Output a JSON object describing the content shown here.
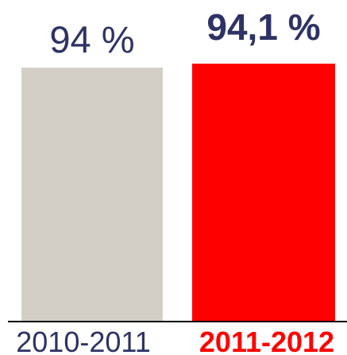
{
  "chart_data": {
    "type": "bar",
    "categories": [
      "2010-2011",
      "2011-2012"
    ],
    "values": [
      94,
      94.1
    ],
    "value_labels": [
      "94 %",
      "94,1 %"
    ],
    "colors": [
      "#d3cfc7",
      "#ff0000"
    ],
    "label_colors": [
      "#2e3264",
      "#2e3264"
    ],
    "category_label_colors": [
      "#2e3264",
      "#ff0000"
    ],
    "highlight": [
      false,
      true
    ],
    "ylim": [
      0,
      100
    ],
    "grid": false,
    "legend": "none",
    "title": "",
    "xlabel": "",
    "ylabel": ""
  }
}
